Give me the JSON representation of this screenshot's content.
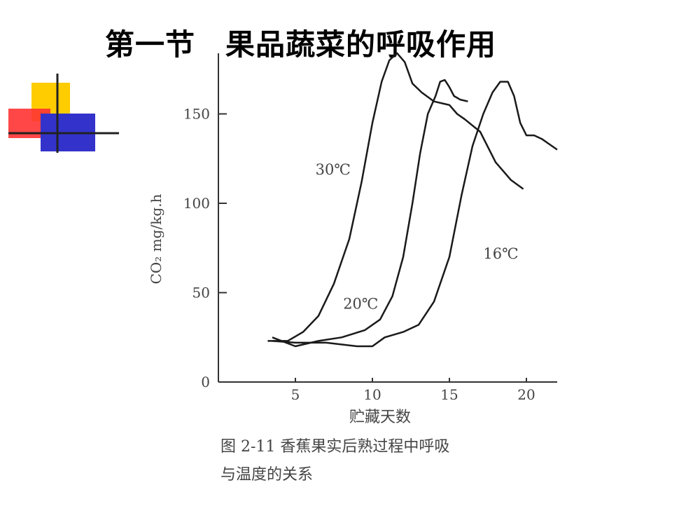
{
  "slide": {
    "title": "第一节　果品蔬菜的呼吸作用"
  },
  "caption": {
    "line1": "图 2-11 香蕉果实后熟过程中呼吸",
    "line2": "与温度的关系"
  },
  "colors": {
    "curve": "#1a1a1a",
    "axis": "#333333",
    "deco_yellow": "#ffcc00",
    "deco_red": "#ff3333",
    "deco_blue": "#3333cc"
  },
  "chart_data": {
    "type": "line",
    "title": "",
    "xlabel": "贮藏天数",
    "ylabel": "CO₂ mg/kg.h",
    "xlim": [
      0,
      22
    ],
    "ylim": [
      0,
      180
    ],
    "xticks": [
      5,
      10,
      15,
      20
    ],
    "yticks": [
      0,
      50,
      100,
      150
    ],
    "grid": false,
    "series": [
      {
        "name": "30℃",
        "x": [
          3.2,
          4.5,
          5.5,
          6.5,
          7.5,
          8.5,
          9.3,
          10.0,
          10.6,
          11.1,
          11.6,
          12.1,
          12.6,
          13.2,
          14.0,
          15.0,
          15.5,
          16.0,
          17.0,
          18.0,
          19.0,
          19.8
        ],
        "y": [
          23,
          23,
          28,
          37,
          55,
          80,
          112,
          145,
          168,
          180,
          184,
          179,
          167,
          162,
          157,
          155,
          150,
          147,
          140,
          123,
          113,
          108
        ]
      },
      {
        "name": "20℃",
        "x": [
          3.5,
          5.0,
          6.5,
          8.0,
          9.5,
          10.5,
          11.3,
          12.0,
          12.6,
          13.1,
          13.6,
          14.1,
          14.4,
          14.7,
          15.0,
          15.3,
          15.7,
          16.2
        ],
        "y": [
          25,
          20,
          23,
          25,
          29,
          35,
          48,
          70,
          100,
          128,
          150,
          160,
          168,
          169,
          165,
          160,
          158,
          157
        ]
      },
      {
        "name": "16℃",
        "x": [
          3.5,
          5.0,
          7.0,
          9.0,
          10.0,
          10.8,
          12.0,
          13.0,
          14.0,
          15.0,
          15.8,
          16.5,
          17.2,
          17.8,
          18.3,
          18.8,
          19.2,
          19.6,
          20.0,
          20.5,
          21.0,
          21.5,
          22.0
        ],
        "y": [
          23,
          22,
          22,
          20,
          20,
          25,
          28,
          32,
          45,
          70,
          105,
          132,
          150,
          162,
          168,
          168,
          160,
          145,
          138,
          138,
          136,
          133,
          130
        ]
      }
    ],
    "annotations": [
      "30℃",
      "20℃",
      "16℃"
    ]
  }
}
